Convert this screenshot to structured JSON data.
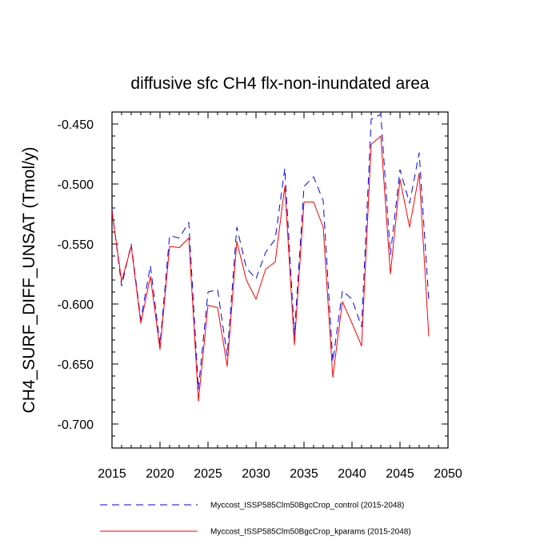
{
  "chart_data": {
    "type": "line",
    "title": "diffusive sfc CH4 flx-non-inundated area",
    "xlabel": "",
    "ylabel": "CH4_SURF_DIFF_UNSAT  (Tmol/y)",
    "xlim": [
      2015,
      2050
    ],
    "ylim": [
      -0.72,
      -0.44
    ],
    "xticks": [
      2015,
      2020,
      2025,
      2030,
      2035,
      2040,
      2045,
      2050
    ],
    "xtick_labels": [
      "2015",
      "2020",
      "2025",
      "2030",
      "2035",
      "2040",
      "2045",
      "2050"
    ],
    "yticks": [
      -0.7,
      -0.65,
      -0.6,
      -0.55,
      -0.5,
      -0.45
    ],
    "ytick_labels": [
      "-0.700",
      "-0.650",
      "-0.600",
      "-0.550",
      "-0.500",
      "-0.450"
    ],
    "grid": false,
    "legend_position": "bottom",
    "x": [
      2015,
      2016,
      2017,
      2018,
      2019,
      2020,
      2021,
      2022,
      2023,
      2024,
      2025,
      2026,
      2027,
      2028,
      2029,
      2030,
      2031,
      2032,
      2033,
      2034,
      2035,
      2036,
      2037,
      2038,
      2039,
      2040,
      2041,
      2042,
      2043,
      2044,
      2045,
      2046,
      2047,
      2048
    ],
    "series": [
      {
        "name": "Myccost_ISSP585Clm50BgcCrop_control (2015-2048)",
        "color": "#0000ff",
        "style": "dashed",
        "values": [
          -0.521,
          -0.585,
          -0.55,
          -0.613,
          -0.568,
          -0.634,
          -0.543,
          -0.545,
          -0.532,
          -0.671,
          -0.59,
          -0.588,
          -0.643,
          -0.536,
          -0.57,
          -0.579,
          -0.557,
          -0.546,
          -0.487,
          -0.626,
          -0.502,
          -0.494,
          -0.514,
          -0.648,
          -0.589,
          -0.596,
          -0.619,
          -0.446,
          -0.442,
          -0.559,
          -0.488,
          -0.516,
          -0.474,
          -0.597
        ]
      },
      {
        "name": "Myccost_ISSP585Clm50BgcCrop_kparams (2015-2048)",
        "color": "#ff0000",
        "style": "solid",
        "values": [
          -0.523,
          -0.581,
          -0.552,
          -0.616,
          -0.577,
          -0.638,
          -0.552,
          -0.553,
          -0.545,
          -0.681,
          -0.601,
          -0.603,
          -0.652,
          -0.548,
          -0.58,
          -0.596,
          -0.571,
          -0.565,
          -0.502,
          -0.634,
          -0.515,
          -0.515,
          -0.536,
          -0.661,
          -0.598,
          -0.616,
          -0.635,
          -0.467,
          -0.46,
          -0.575,
          -0.496,
          -0.536,
          -0.491,
          -0.627
        ]
      }
    ]
  }
}
